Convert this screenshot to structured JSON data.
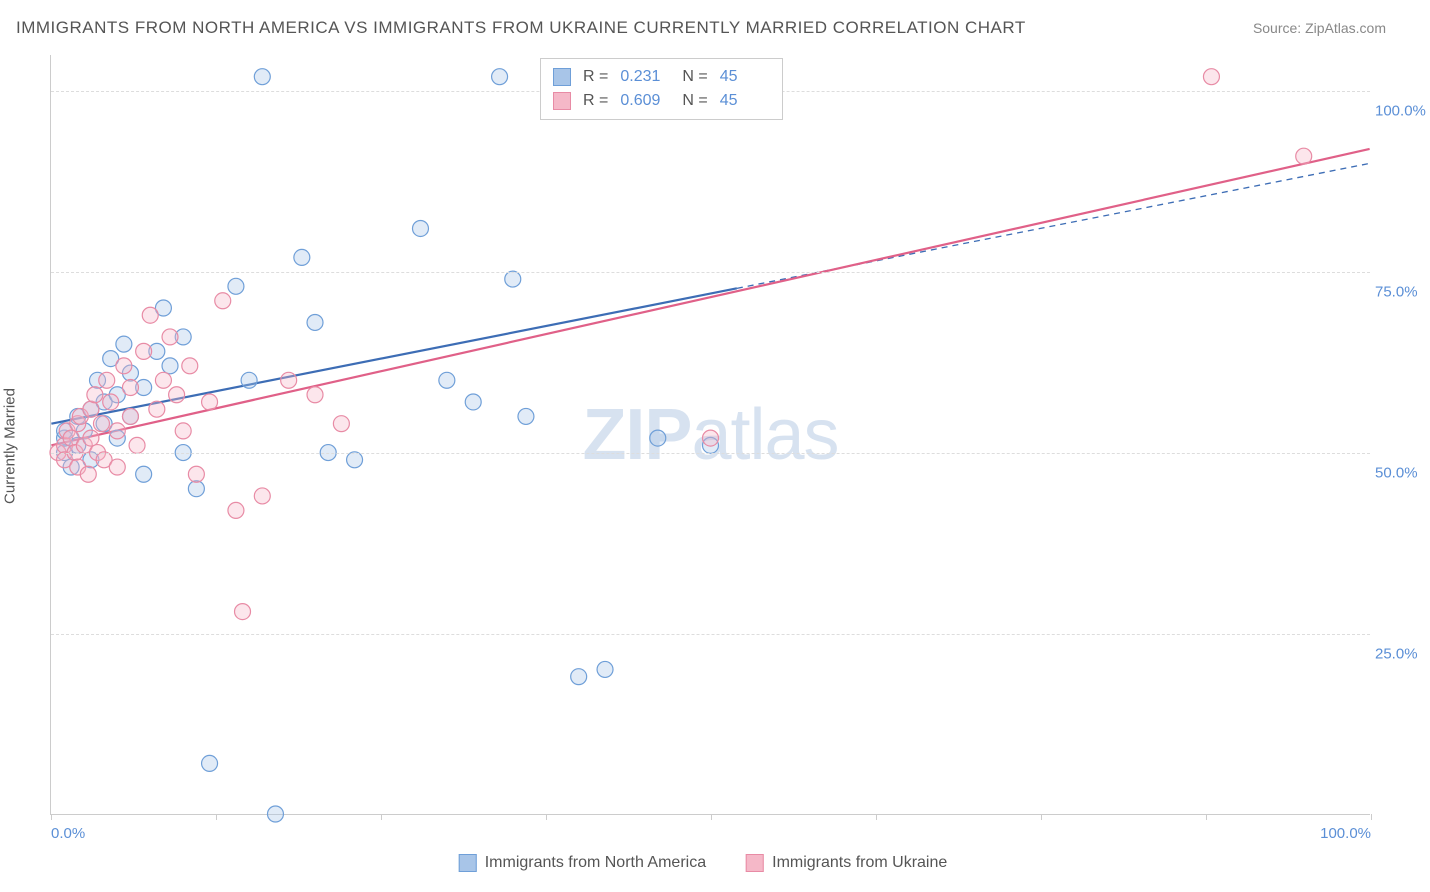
{
  "title": "IMMIGRANTS FROM NORTH AMERICA VS IMMIGRANTS FROM UKRAINE CURRENTLY MARRIED CORRELATION CHART",
  "source": "Source: ZipAtlas.com",
  "ylabel": "Currently Married",
  "watermark_a": "ZIP",
  "watermark_b": "atlas",
  "chart": {
    "type": "scatter",
    "xlim": [
      0,
      100
    ],
    "ylim": [
      0,
      105
    ],
    "yticks": [
      25,
      50,
      75,
      100
    ],
    "ytick_labels": [
      "25.0%",
      "50.0%",
      "75.0%",
      "100.0%"
    ],
    "xticks": [
      0,
      12.5,
      25,
      37.5,
      50,
      62.5,
      75,
      87.5,
      100
    ],
    "xtick_labels_shown": {
      "0": "0.0%",
      "100": "100.0%"
    },
    "background_color": "#ffffff",
    "grid_color": "#dddddd",
    "axis_color": "#cccccc",
    "tick_label_color": "#5b8fd6",
    "marker_radius": 8,
    "marker_fill_opacity": 0.35,
    "marker_stroke_width": 1.2,
    "series": [
      {
        "name": "Immigrants from North America",
        "color_fill": "#a8c5e8",
        "color_stroke": "#6f9fd8",
        "R": "0.231",
        "N": "45",
        "trend": {
          "x1": 0,
          "y1": 54,
          "x2": 100,
          "y2": 90,
          "solid_until_x": 52,
          "color": "#3d6db5",
          "width": 2.2
        },
        "points": [
          [
            1,
            50
          ],
          [
            1,
            52
          ],
          [
            1,
            53
          ],
          [
            1.5,
            48
          ],
          [
            2,
            55
          ],
          [
            2,
            51
          ],
          [
            2.5,
            53
          ],
          [
            3,
            56
          ],
          [
            3,
            49
          ],
          [
            3.5,
            60
          ],
          [
            4,
            57
          ],
          [
            4,
            54
          ],
          [
            4.5,
            63
          ],
          [
            5,
            58
          ],
          [
            5,
            52
          ],
          [
            5.5,
            65
          ],
          [
            6,
            61
          ],
          [
            6,
            55
          ],
          [
            7,
            59
          ],
          [
            7,
            47
          ],
          [
            8,
            64
          ],
          [
            8.5,
            70
          ],
          [
            9,
            62
          ],
          [
            10,
            66
          ],
          [
            10,
            50
          ],
          [
            11,
            45
          ],
          [
            12,
            7
          ],
          [
            14,
            73
          ],
          [
            15,
            60
          ],
          [
            16,
            102
          ],
          [
            17,
            0
          ],
          [
            19,
            77
          ],
          [
            20,
            68
          ],
          [
            21,
            50
          ],
          [
            23,
            49
          ],
          [
            28,
            81
          ],
          [
            30,
            60
          ],
          [
            32,
            57
          ],
          [
            34,
            102
          ],
          [
            35,
            74
          ],
          [
            36,
            55
          ],
          [
            40,
            19
          ],
          [
            42,
            20
          ],
          [
            46,
            52
          ],
          [
            50,
            51
          ]
        ]
      },
      {
        "name": "Immigrants from Ukraine",
        "color_fill": "#f5b8c8",
        "color_stroke": "#e88ba5",
        "R": "0.609",
        "N": "45",
        "trend": {
          "x1": 0,
          "y1": 51,
          "x2": 100,
          "y2": 92,
          "solid_until_x": 100,
          "color": "#e06088",
          "width": 2.2
        },
        "points": [
          [
            0.5,
            50
          ],
          [
            1,
            51
          ],
          [
            1,
            49
          ],
          [
            1.2,
            53
          ],
          [
            1.5,
            52
          ],
          [
            1.8,
            50
          ],
          [
            2,
            54
          ],
          [
            2,
            48
          ],
          [
            2.2,
            55
          ],
          [
            2.5,
            51
          ],
          [
            2.8,
            47
          ],
          [
            3,
            56
          ],
          [
            3,
            52
          ],
          [
            3.3,
            58
          ],
          [
            3.5,
            50
          ],
          [
            3.8,
            54
          ],
          [
            4,
            49
          ],
          [
            4.2,
            60
          ],
          [
            4.5,
            57
          ],
          [
            5,
            53
          ],
          [
            5,
            48
          ],
          [
            5.5,
            62
          ],
          [
            6,
            55
          ],
          [
            6,
            59
          ],
          [
            6.5,
            51
          ],
          [
            7,
            64
          ],
          [
            7.5,
            69
          ],
          [
            8,
            56
          ],
          [
            8.5,
            60
          ],
          [
            9,
            66
          ],
          [
            9.5,
            58
          ],
          [
            10,
            53
          ],
          [
            10.5,
            62
          ],
          [
            11,
            47
          ],
          [
            12,
            57
          ],
          [
            13,
            71
          ],
          [
            14,
            42
          ],
          [
            14.5,
            28
          ],
          [
            16,
            44
          ],
          [
            18,
            60
          ],
          [
            20,
            58
          ],
          [
            22,
            54
          ],
          [
            50,
            52
          ],
          [
            88,
            102
          ],
          [
            95,
            91
          ]
        ]
      }
    ]
  },
  "legend_top": {
    "rows": [
      {
        "swatch_fill": "#a8c5e8",
        "swatch_stroke": "#6f9fd8",
        "r_label": "R =",
        "r_val": "0.231",
        "n_label": "N =",
        "n_val": "45"
      },
      {
        "swatch_fill": "#f5b8c8",
        "swatch_stroke": "#e88ba5",
        "r_label": "R =",
        "r_val": "0.609",
        "n_label": "N =",
        "n_val": "45"
      }
    ]
  },
  "legend_bottom": {
    "items": [
      {
        "swatch_fill": "#a8c5e8",
        "swatch_stroke": "#6f9fd8",
        "label": "Immigrants from North America"
      },
      {
        "swatch_fill": "#f5b8c8",
        "swatch_stroke": "#e88ba5",
        "label": "Immigrants from Ukraine"
      }
    ]
  }
}
